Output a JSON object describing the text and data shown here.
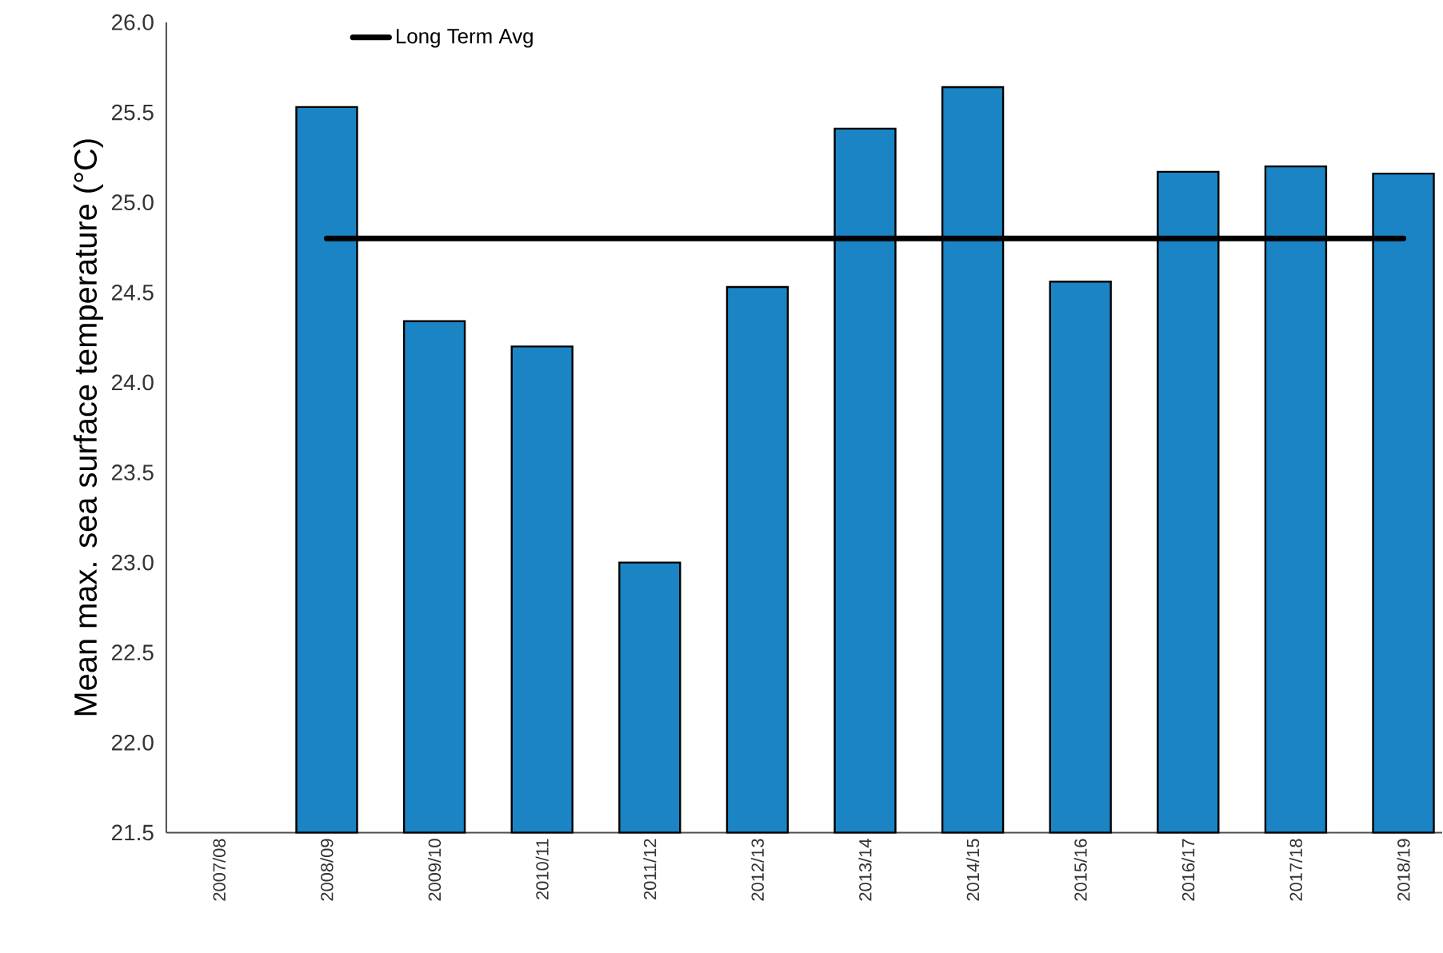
{
  "chart_data": {
    "type": "bar",
    "ylabel": "Mean max. sea surface temperature (°C)",
    "categories": [
      "2007/08",
      "2008/09",
      "2009/10",
      "2010/11",
      "2011/12",
      "2012/13",
      "2013/14",
      "2014/15",
      "2015/16",
      "2016/17",
      "2017/18",
      "2018/19"
    ],
    "series": [
      {
        "color": "#1a84c4",
        "values": [
          null,
          25.53,
          24.34,
          24.2,
          23.0,
          24.53,
          25.41,
          25.64,
          24.56,
          25.17,
          25.2,
          25.16
        ]
      },
      {
        "type": "line",
        "name": "Long Term Avg",
        "color": "#000000",
        "values": [
          null,
          24.8,
          24.8,
          24.8,
          24.8,
          24.8,
          24.8,
          24.8,
          24.8,
          24.8,
          24.8,
          24.8
        ]
      }
    ],
    "ylim": [
      21.5,
      26.0
    ],
    "yticks": [
      {
        "value": 21.5,
        "label": "21.5"
      },
      {
        "value": 22.0,
        "label": "22.0"
      },
      {
        "value": 22.5,
        "label": "22.5"
      },
      {
        "value": 23.0,
        "label": "23.0"
      },
      {
        "value": 23.5,
        "label": "23.5"
      },
      {
        "value": 24.0,
        "label": "24.0"
      },
      {
        "value": 24.5,
        "label": "24.5"
      },
      {
        "value": 25.0,
        "label": "25.0"
      },
      {
        "value": 25.5,
        "label": "25.5"
      },
      {
        "value": 26.0,
        "label": "26.0"
      }
    ],
    "legend": "top"
  }
}
